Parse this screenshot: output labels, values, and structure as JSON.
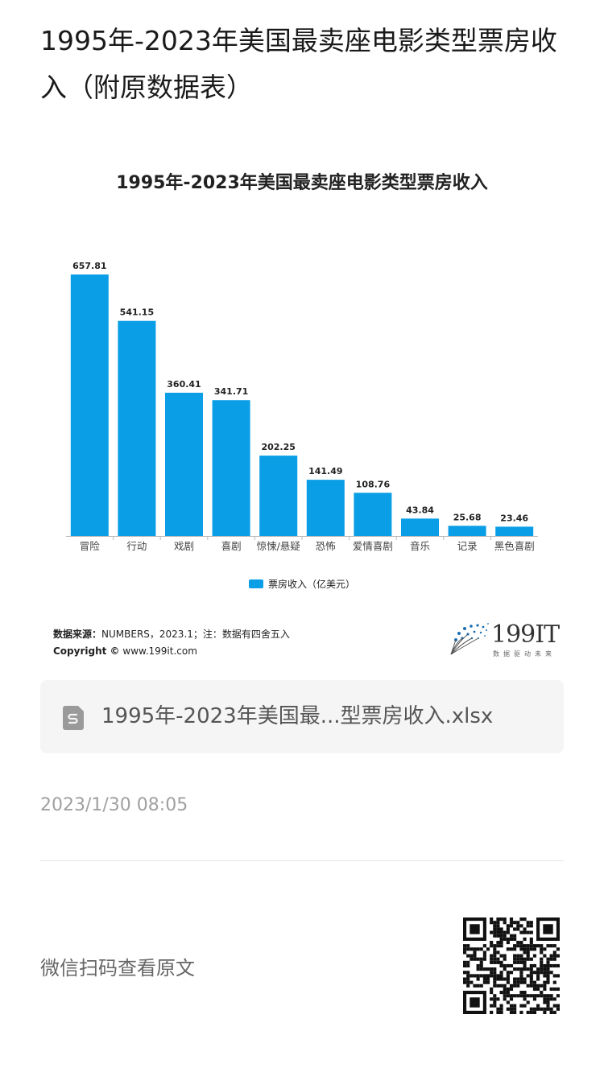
{
  "page_title": "1995年-2023年美国最卖座电影类型票房收入（附原数据表）",
  "chart_data": {
    "type": "bar",
    "title": "1995年-2023年美国最卖座电影类型票房收入",
    "categories": [
      "冒险",
      "行动",
      "戏剧",
      "喜剧",
      "惊悚/悬疑",
      "恐怖",
      "爱情喜剧",
      "音乐",
      "记录",
      "黑色喜剧"
    ],
    "values": [
      657.81,
      541.15,
      360.41,
      341.71,
      202.25,
      141.49,
      108.76,
      43.84,
      25.68,
      23.46
    ],
    "series_name": "票房收入（亿美元）",
    "bar_color": "#0a9ee6",
    "ylim": [
      0,
      660
    ],
    "grid": false,
    "legend_position": "bottom"
  },
  "source": {
    "label": "数据来源：",
    "text": "NUMBERS，2023.1；注：数据有四舍五入",
    "copyright_label": "Copyright ©",
    "copyright_text": "www.199it.com"
  },
  "brand": {
    "name": "199IT",
    "slogan": "数据驱动未来"
  },
  "attachment": {
    "file_name": "1995年-2023年美国最...型票房收入.xlsx",
    "icon": "spreadsheet-file-icon"
  },
  "timestamp": "2023/1/30 08:05",
  "footer": {
    "wechat_text": "微信扫码查看原文",
    "qr_icon": "qr-code-icon"
  }
}
